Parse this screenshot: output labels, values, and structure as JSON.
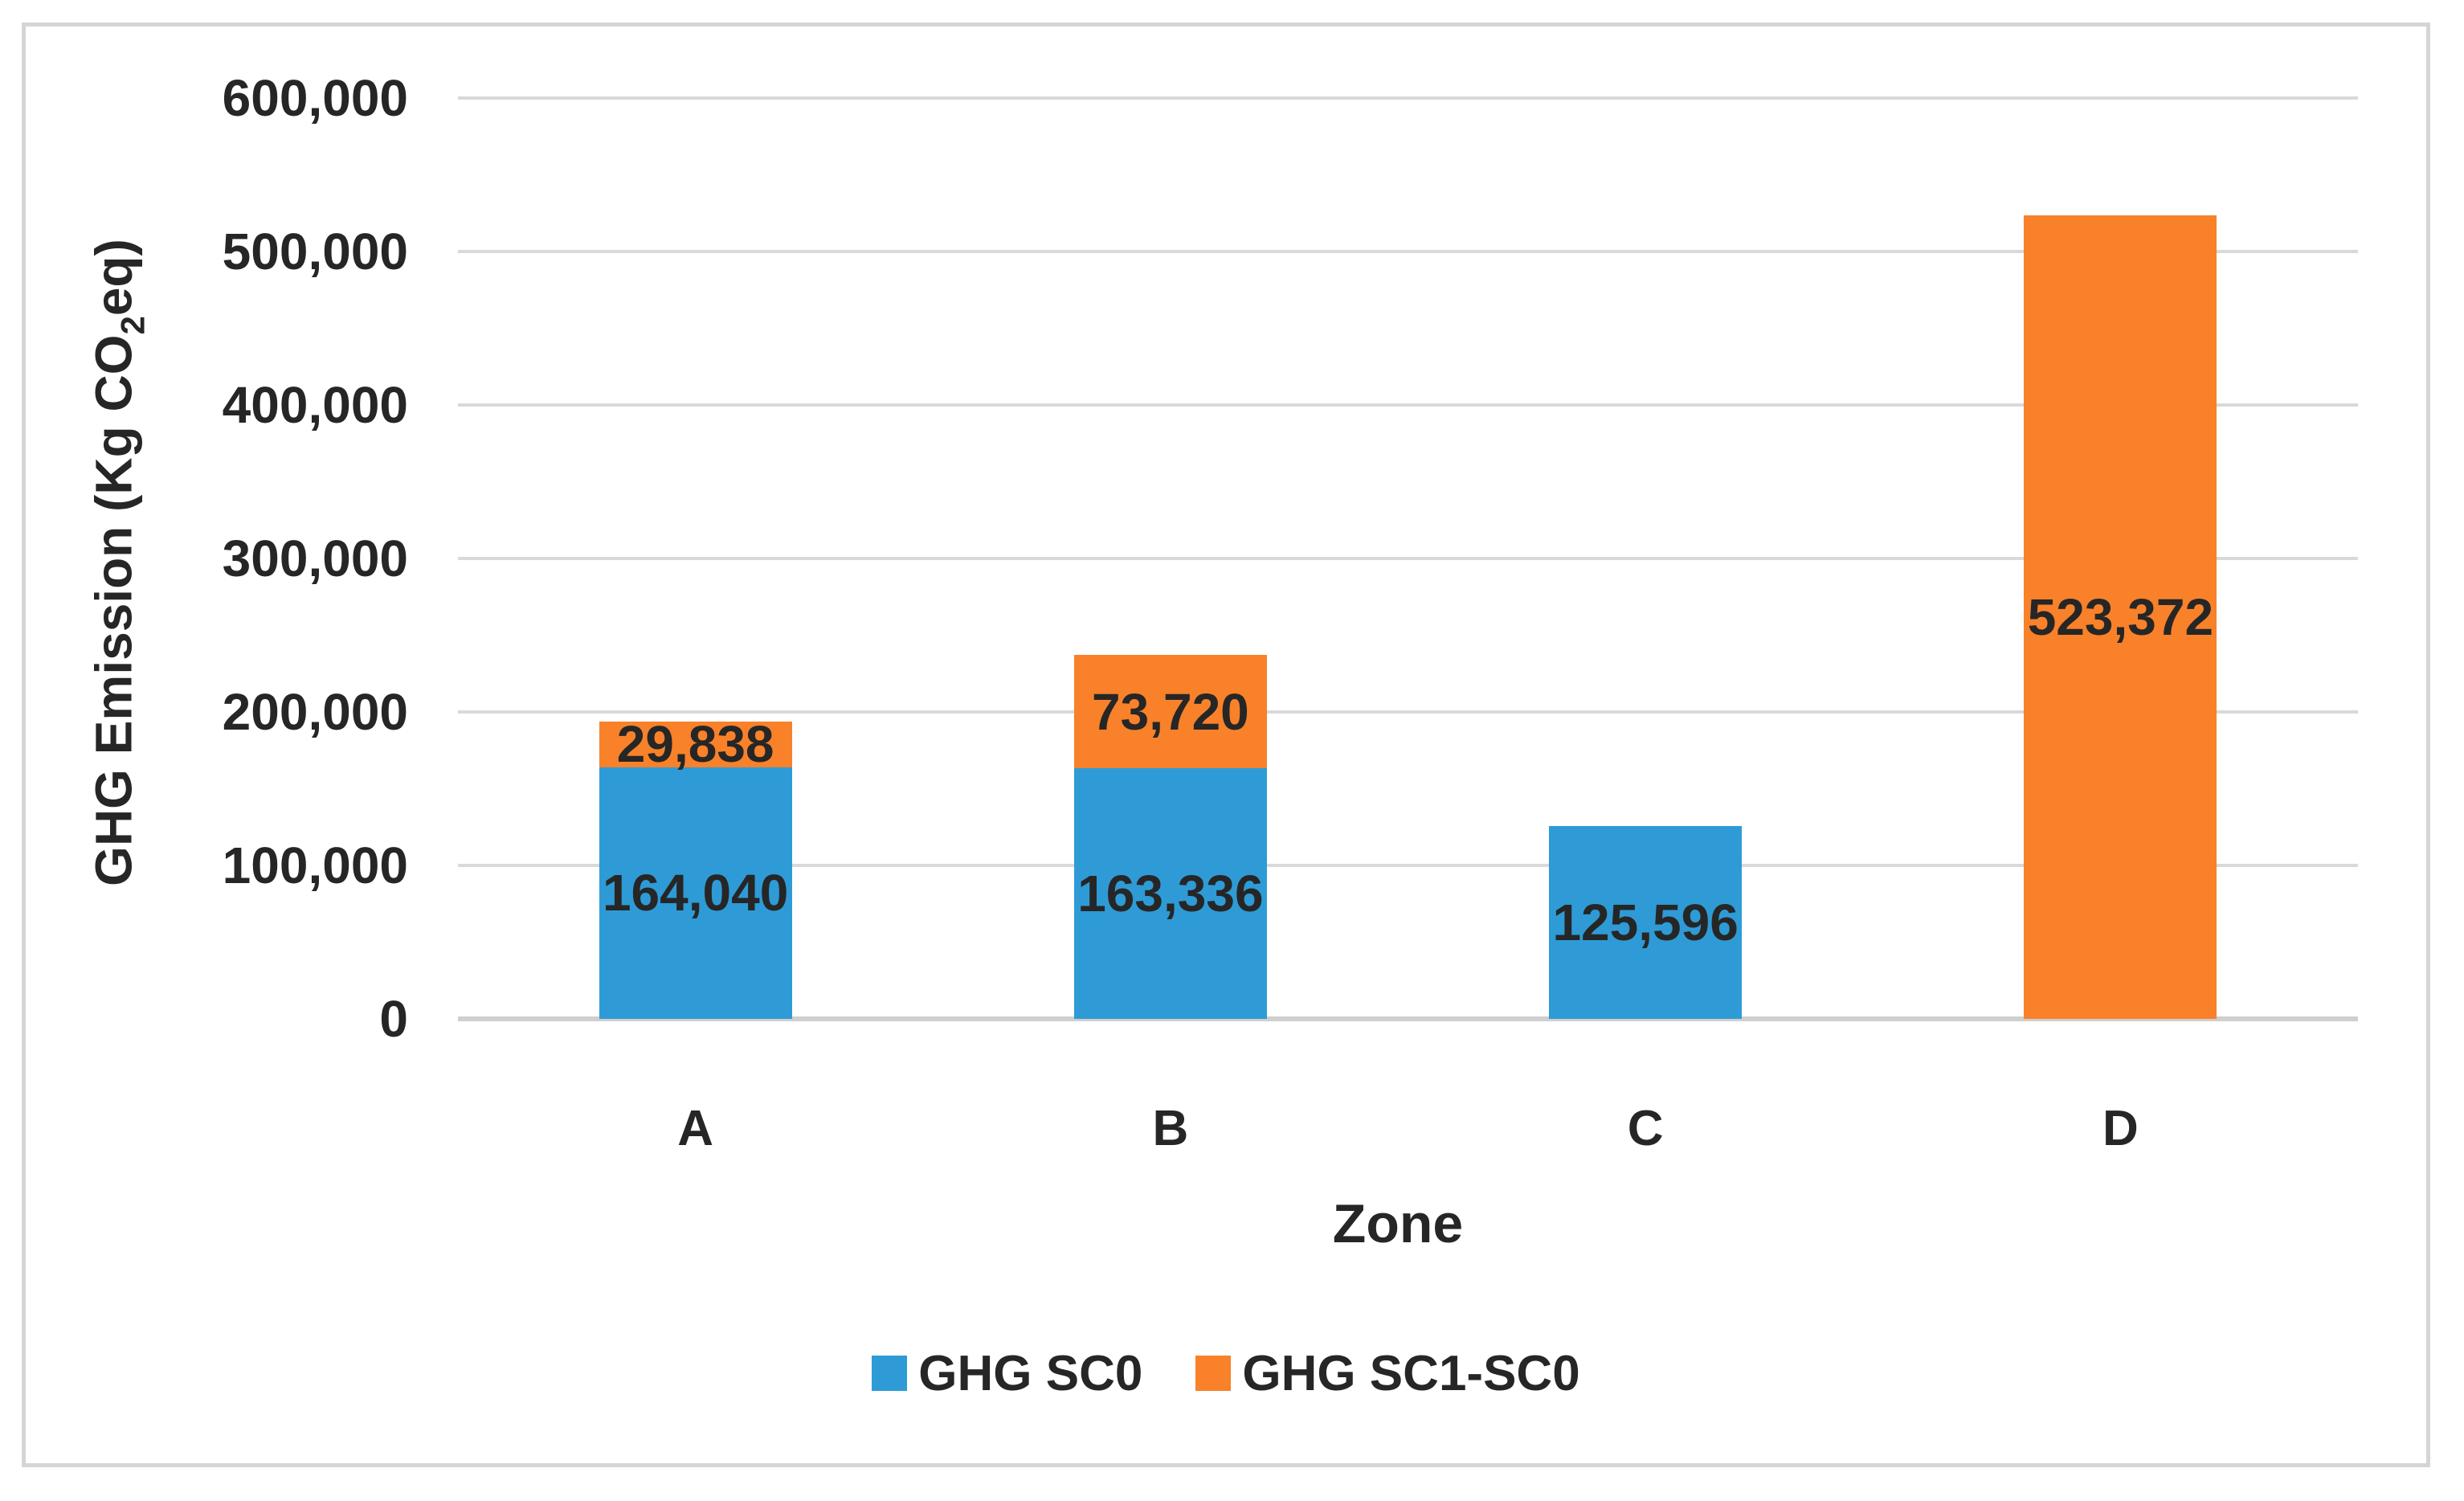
{
  "chart_data": {
    "type": "bar",
    "stacked": true,
    "title": "",
    "categories": [
      "A",
      "B",
      "C",
      "D"
    ],
    "series": [
      {
        "name": "GHG SC0",
        "color": "#2E9BD6",
        "values": [
          164040,
          163336,
          125596,
          0
        ],
        "labels": [
          "164,040",
          "163,336",
          "125,596",
          ""
        ]
      },
      {
        "name": "GHG SC1-SC0",
        "color": "#F8812A",
        "values": [
          29838,
          73720,
          0,
          523372
        ],
        "labels": [
          "29,838",
          "73,720",
          "",
          "523,372"
        ]
      }
    ],
    "xlabel": "Zone",
    "ylabel": "GHG Emission (Kg CO₂eq)",
    "ylim": [
      0,
      600000
    ],
    "ytick_values": [
      0,
      100000,
      200000,
      300000,
      400000,
      500000,
      600000
    ],
    "ytick_labels": [
      "0",
      "100,000",
      "200,000",
      "300,000",
      "400,000",
      "500,000",
      "600,000"
    ],
    "grid": true,
    "legend_position": "bottom"
  },
  "labels": {
    "y_title_prefix": "GHG Emission (Kg CO",
    "y_title_sub": "2",
    "y_title_suffix": "eq)"
  },
  "colors": {
    "series_blue": "#2E9BD6",
    "series_orange": "#F8812A",
    "text": "#262626",
    "gridline": "#D9D9D9",
    "axis_line": "#CFCFCF",
    "frame_border": "#D5D5D5",
    "background": "#FFFFFF"
  }
}
